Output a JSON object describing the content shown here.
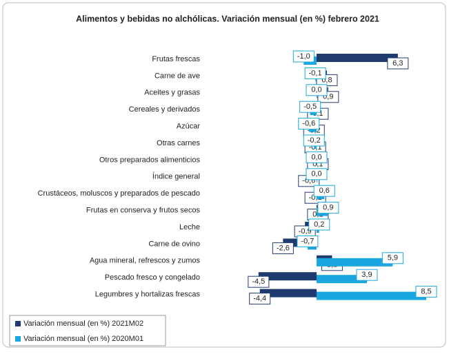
{
  "chart_data": {
    "type": "hbar",
    "title": "Alimentos y bebidas no alchólicas. Variación mensual (en %) febrero 2021",
    "categories": [
      "Frutas frescas",
      "Carne de ave",
      "Aceites y grasas",
      "Cereales y derivados",
      "Azúcar",
      "Otras carnes",
      "Otros preparados alimenticios",
      "Índice general",
      "Crustáceos, moluscos y preparados de pescado",
      "Frutas en conserva y frutos secos",
      "Leche",
      "Carne de ovino",
      "Agua mineral, refrescos  y zumos",
      "Pescado fresco y congelado",
      "Legumbres y hortalizas frescas"
    ],
    "series": [
      {
        "name": "Variación mensual (en %) 2021M02",
        "color": "#1f3a6e",
        "values": [
          6.3,
          0.8,
          0.9,
          0.1,
          -0.2,
          -0.1,
          0.1,
          -0.6,
          -0.1,
          0.1,
          -0.9,
          -2.6,
          1.2,
          -4.5,
          -4.4
        ],
        "value_labels": [
          "6,3",
          "0,8",
          "0,9",
          "0,1",
          "-0,2",
          "-0,1",
          "0,1",
          "-0,6",
          "-0,1",
          "0,1",
          "-0,9",
          "-2,6",
          "1,2",
          "-4,5",
          "-4,4"
        ]
      },
      {
        "name": "Variación mensual (en %) 2020M01",
        "color": "#1aa7e0",
        "values": [
          -1.0,
          -0.1,
          0.0,
          -0.5,
          -0.6,
          -0.2,
          0.0,
          0.0,
          0.6,
          0.9,
          0.2,
          -0.7,
          5.9,
          3.9,
          8.5
        ],
        "value_labels": [
          "-1,0",
          "-0,1",
          "0,0",
          "-0,5",
          "-0,6",
          "-0,2",
          "0,0",
          "0,0",
          "0,6",
          "0,9",
          "0,2",
          "-0,7",
          "5,9",
          "3,9",
          "8,5"
        ]
      }
    ]
  }
}
